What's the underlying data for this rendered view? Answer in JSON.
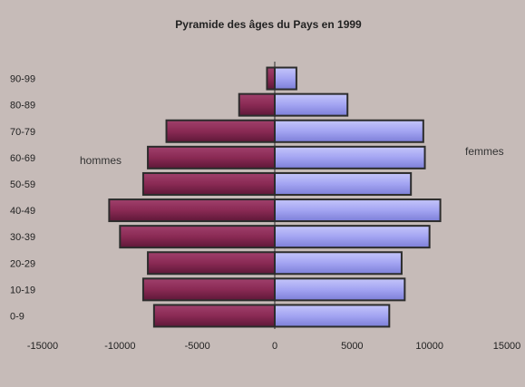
{
  "chart_data": {
    "type": "bar",
    "orientation": "horizontal-population-pyramid",
    "title": "Pyramide des âges du Pays en 1999",
    "categories": [
      "0-9",
      "10-19",
      "20-29",
      "30-39",
      "40-49",
      "50-59",
      "60-69",
      "70-79",
      "80-89",
      "90-99"
    ],
    "series": [
      {
        "name": "hommes",
        "values": [
          -7800,
          -8500,
          -8200,
          -10000,
          -10700,
          -8500,
          -8200,
          -7000,
          -2300,
          -500
        ],
        "color": "#8a2a54"
      },
      {
        "name": "femmes",
        "values": [
          7400,
          8400,
          8200,
          10000,
          10700,
          8800,
          9700,
          9600,
          4700,
          1400
        ],
        "color": "#a3a4f2"
      }
    ],
    "xlim": [
      -15000,
      15000
    ],
    "xticks": [
      "-15000",
      "-10000",
      "-5000",
      "0",
      "5000",
      "10000",
      "15000"
    ],
    "xtick_values": [
      -15000,
      -10000,
      -5000,
      0,
      5000,
      10000,
      15000
    ],
    "grid": false,
    "legend": "none"
  }
}
